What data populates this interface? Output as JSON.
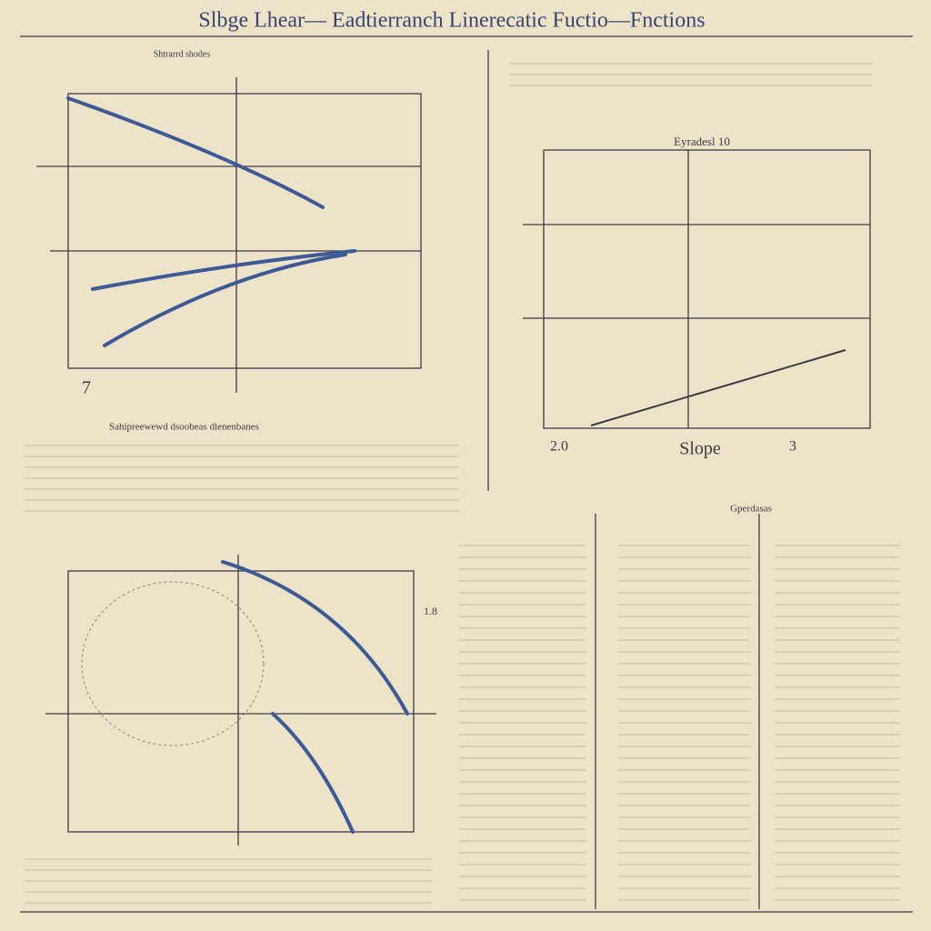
{
  "header": {
    "title": "Slbge Lhear— Eadtierranch Linerecatic Fuctio—Fnctions"
  },
  "panels": [
    {
      "heading": "Shtrarrd shodes",
      "axis_label": "7",
      "caption": "Sahipreewewd dsoobeas dlenenbanes"
    },
    {
      "heading": "Eyradesl 10",
      "labels": [
        "2.0",
        "Slope",
        "3"
      ]
    },
    {
      "heading": "1.8"
    },
    {
      "heading": "Gperdasas"
    }
  ]
}
